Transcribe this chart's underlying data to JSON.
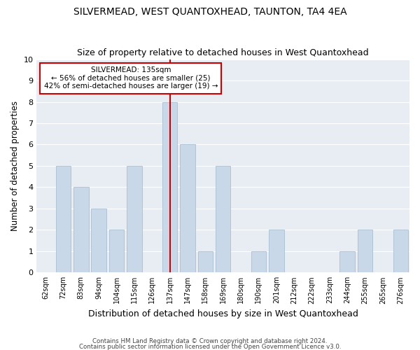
{
  "title": "SILVERMEAD, WEST QUANTOXHEAD, TAUNTON, TA4 4EA",
  "subtitle": "Size of property relative to detached houses in West Quantoxhead",
  "xlabel": "Distribution of detached houses by size in West Quantoxhead",
  "ylabel": "Number of detached properties",
  "bin_labels": [
    "62sqm",
    "72sqm",
    "83sqm",
    "94sqm",
    "104sqm",
    "115sqm",
    "126sqm",
    "137sqm",
    "147sqm",
    "158sqm",
    "169sqm",
    "180sqm",
    "190sqm",
    "201sqm",
    "212sqm",
    "222sqm",
    "233sqm",
    "244sqm",
    "255sqm",
    "265sqm",
    "276sqm"
  ],
  "bar_values": [
    0,
    5,
    4,
    3,
    2,
    5,
    0,
    8,
    6,
    1,
    5,
    0,
    1,
    2,
    0,
    0,
    0,
    1,
    2,
    0,
    2
  ],
  "highlight_index": 7,
  "bar_color": "#c8d8e8",
  "bar_edge_color": "#a0b8cc",
  "highlight_line_color": "#cc0000",
  "annotation_title": "SILVERMEAD: 135sqm",
  "annotation_line1": "← 56% of detached houses are smaller (25)",
  "annotation_line2": "42% of semi-detached houses are larger (19) →",
  "annotation_box_color": "#ffffff",
  "annotation_box_edge": "#cc0000",
  "ylim": [
    0,
    10
  ],
  "yticks": [
    0,
    1,
    2,
    3,
    4,
    5,
    6,
    7,
    8,
    9,
    10
  ],
  "footer1": "Contains HM Land Registry data © Crown copyright and database right 2024.",
  "footer2": "Contains public sector information licensed under the Open Government Licence v3.0.",
  "background_color": "#ffffff",
  "axes_bg_color": "#e8edf4",
  "grid_color": "#ffffff",
  "title_fontsize": 10,
  "subtitle_fontsize": 9
}
